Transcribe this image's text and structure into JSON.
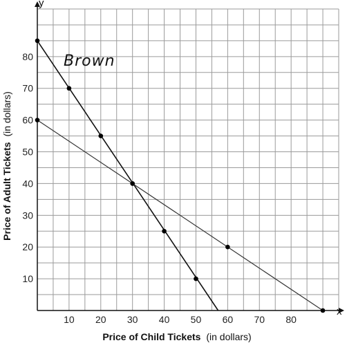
{
  "chart_data": {
    "type": "line",
    "x_axis_letter": "x",
    "y_axis_letter": "y",
    "xlabel": {
      "main": "Price of Child Tickets",
      "unit": "(in dollars)"
    },
    "ylabel": {
      "main": "Price of Adult Tickets",
      "unit": "(in dollars)"
    },
    "xlim": [
      0,
      95
    ],
    "ylim": [
      0,
      95
    ],
    "grid": true,
    "grid_step": 5,
    "x_ticks": [
      "10",
      "20",
      "30",
      "40",
      "50",
      "60",
      "70",
      "80"
    ],
    "x_tick_values": [
      10,
      20,
      30,
      40,
      50,
      60,
      70,
      80
    ],
    "y_ticks": [
      "10",
      "20",
      "30",
      "40",
      "50",
      "60",
      "70",
      "80"
    ],
    "y_tick_values": [
      10,
      20,
      30,
      40,
      50,
      60,
      70,
      80
    ],
    "series": [
      {
        "name": "Brown",
        "color": "#111111",
        "line": [
          [
            0,
            85
          ],
          [
            57,
            0
          ]
        ],
        "points": [
          [
            0,
            85
          ],
          [
            10,
            70
          ],
          [
            20,
            55
          ],
          [
            30,
            40
          ],
          [
            40,
            25
          ],
          [
            50,
            10
          ]
        ]
      },
      {
        "color": "#333333",
        "line": [
          [
            0,
            60
          ],
          [
            90,
            0
          ]
        ],
        "points": [
          [
            0,
            60
          ],
          [
            30,
            40
          ],
          [
            60,
            20
          ],
          [
            90,
            0
          ]
        ]
      }
    ],
    "annotations": [
      {
        "text": "Brown",
        "x": 9,
        "y": 74
      }
    ]
  }
}
